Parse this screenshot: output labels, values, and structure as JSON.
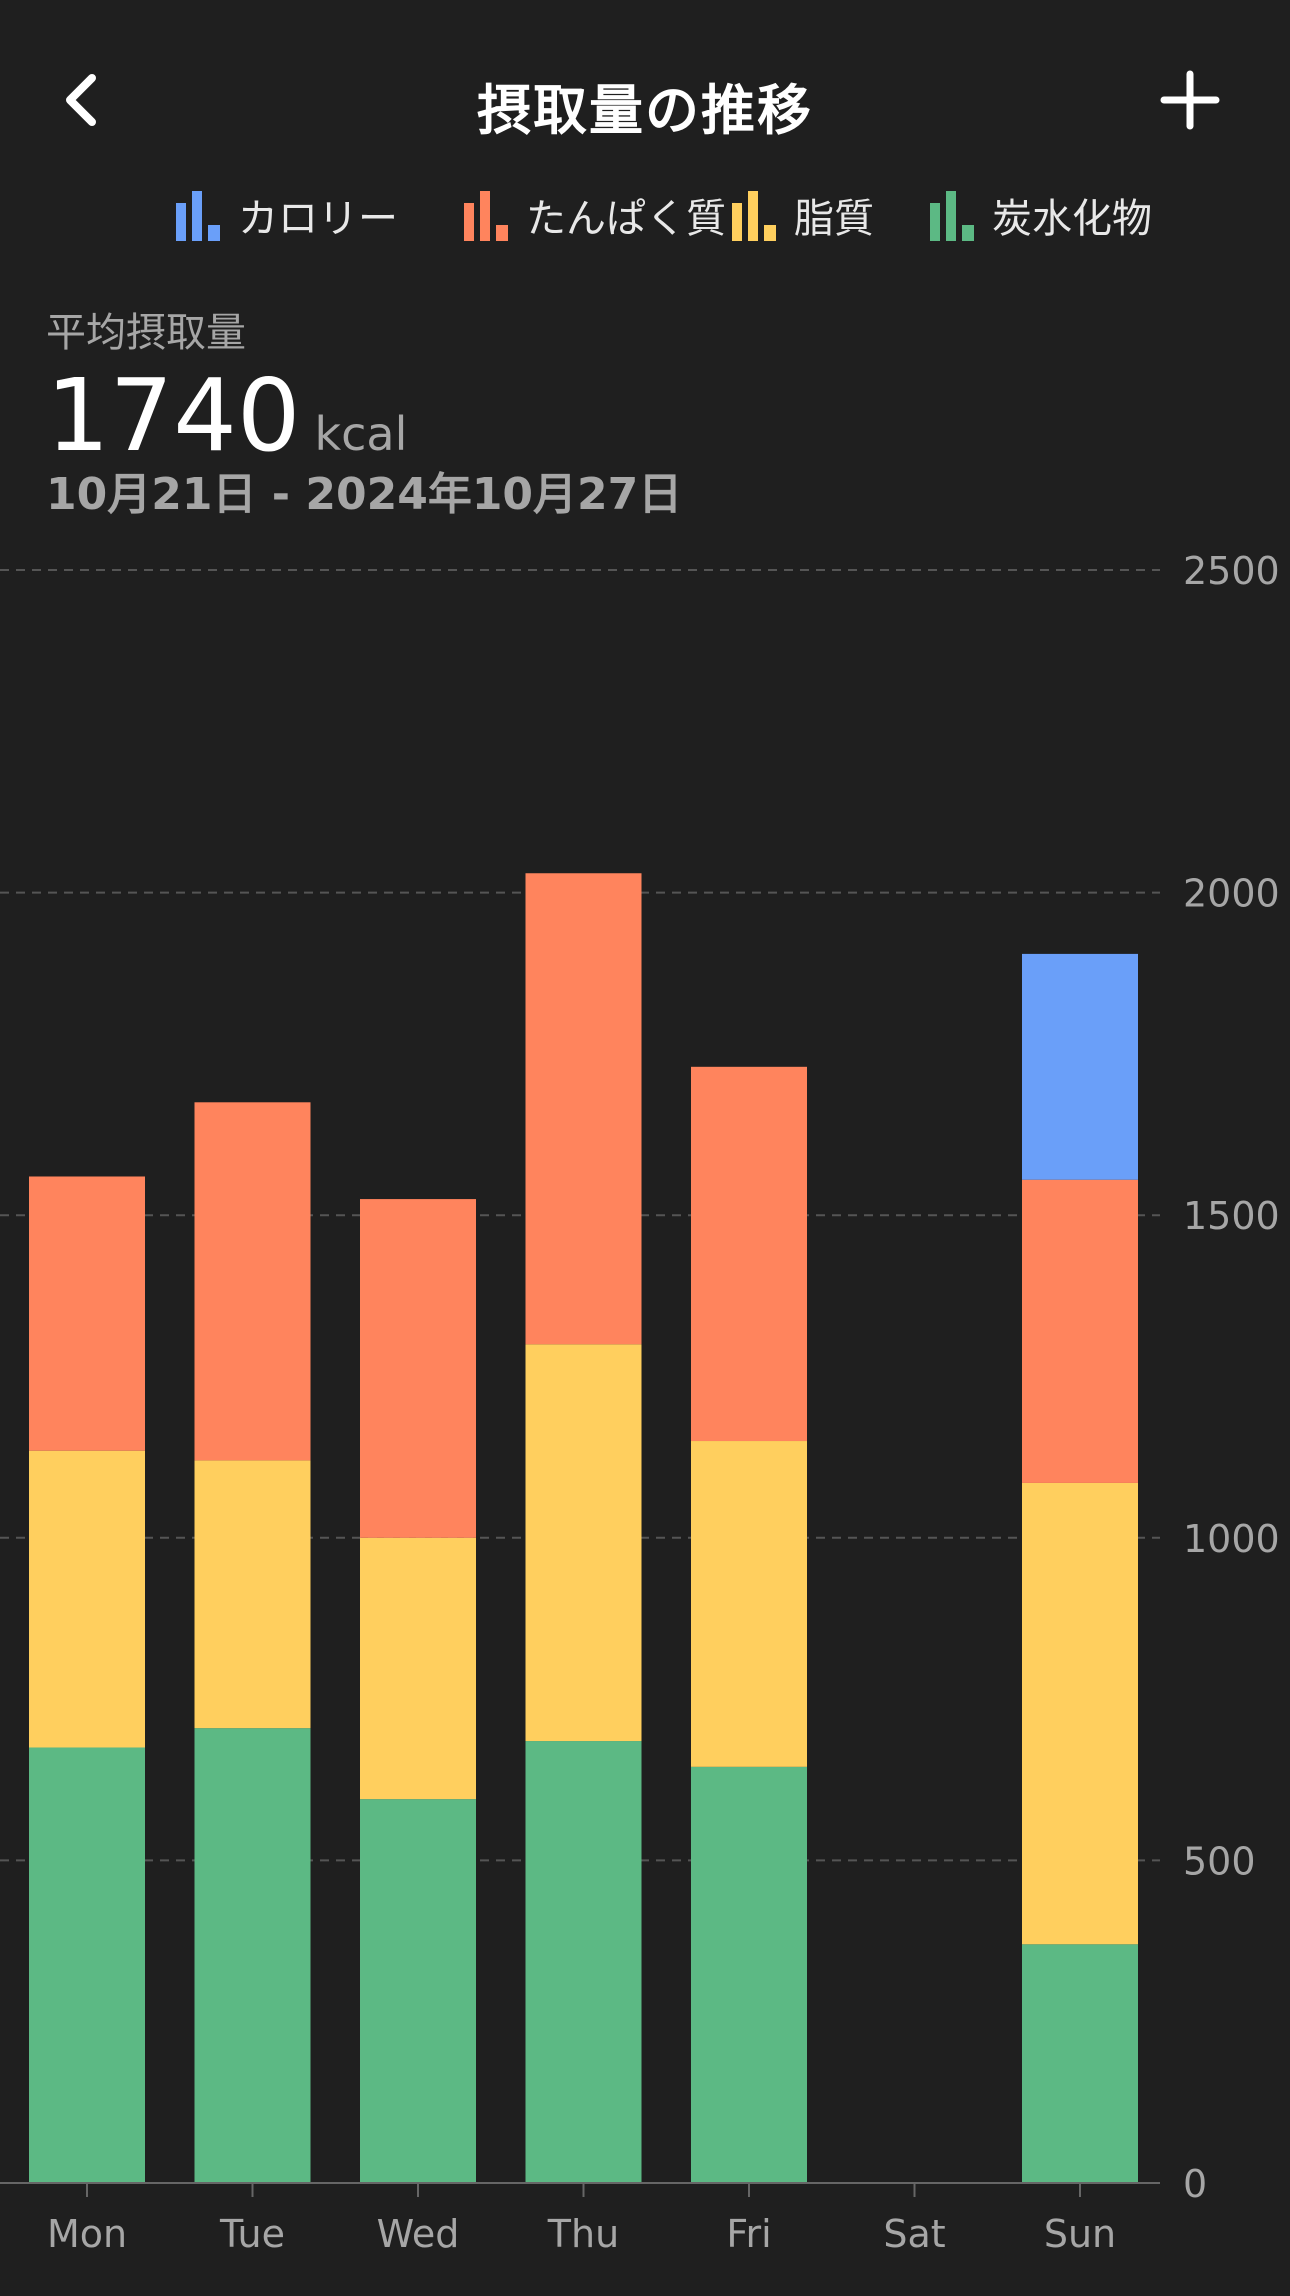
{
  "header": {
    "title": "摂取量の推移",
    "back_icon": "chevron-left-icon",
    "add_icon": "plus-icon"
  },
  "legend": [
    {
      "label": "カロリー",
      "color": "#6a9ff9",
      "icon": "bar-chart-icon"
    },
    {
      "label": "たんぱく質",
      "color": "#ff845d",
      "icon": "bar-chart-icon"
    },
    {
      "label": "脂質",
      "color": "#ffcf5e",
      "icon": "bar-chart-icon"
    },
    {
      "label": "炭水化物",
      "color": "#5cb984",
      "icon": "bar-chart-icon"
    }
  ],
  "summary": {
    "label": "平均摂取量",
    "value": "1740",
    "unit": "kcal",
    "range": "10月21日 - 2024年10月27日"
  },
  "chart_data": {
    "type": "bar",
    "stacked": true,
    "categories": [
      "Mon",
      "Tue",
      "Wed",
      "Thu",
      "Fri",
      "Sat",
      "Sun"
    ],
    "series": [
      {
        "name": "炭水化物",
        "color": "#5cb984",
        "values": [
          675,
          705,
          595,
          685,
          645,
          0,
          370
        ]
      },
      {
        "name": "脂質",
        "color": "#ffcf5e",
        "values": [
          460,
          415,
          405,
          615,
          505,
          0,
          715
        ]
      },
      {
        "name": "たんぱく質",
        "color": "#ff845d",
        "values": [
          425,
          555,
          525,
          730,
          580,
          0,
          470
        ]
      },
      {
        "name": "カロリー",
        "color": "#6a9ff9",
        "values": [
          0,
          0,
          0,
          0,
          0,
          0,
          350
        ]
      }
    ],
    "ylim": [
      0,
      2500
    ],
    "yticks": [
      0,
      500,
      1000,
      1500,
      2000,
      2500
    ],
    "grid": true,
    "yaxis_position": "right"
  }
}
